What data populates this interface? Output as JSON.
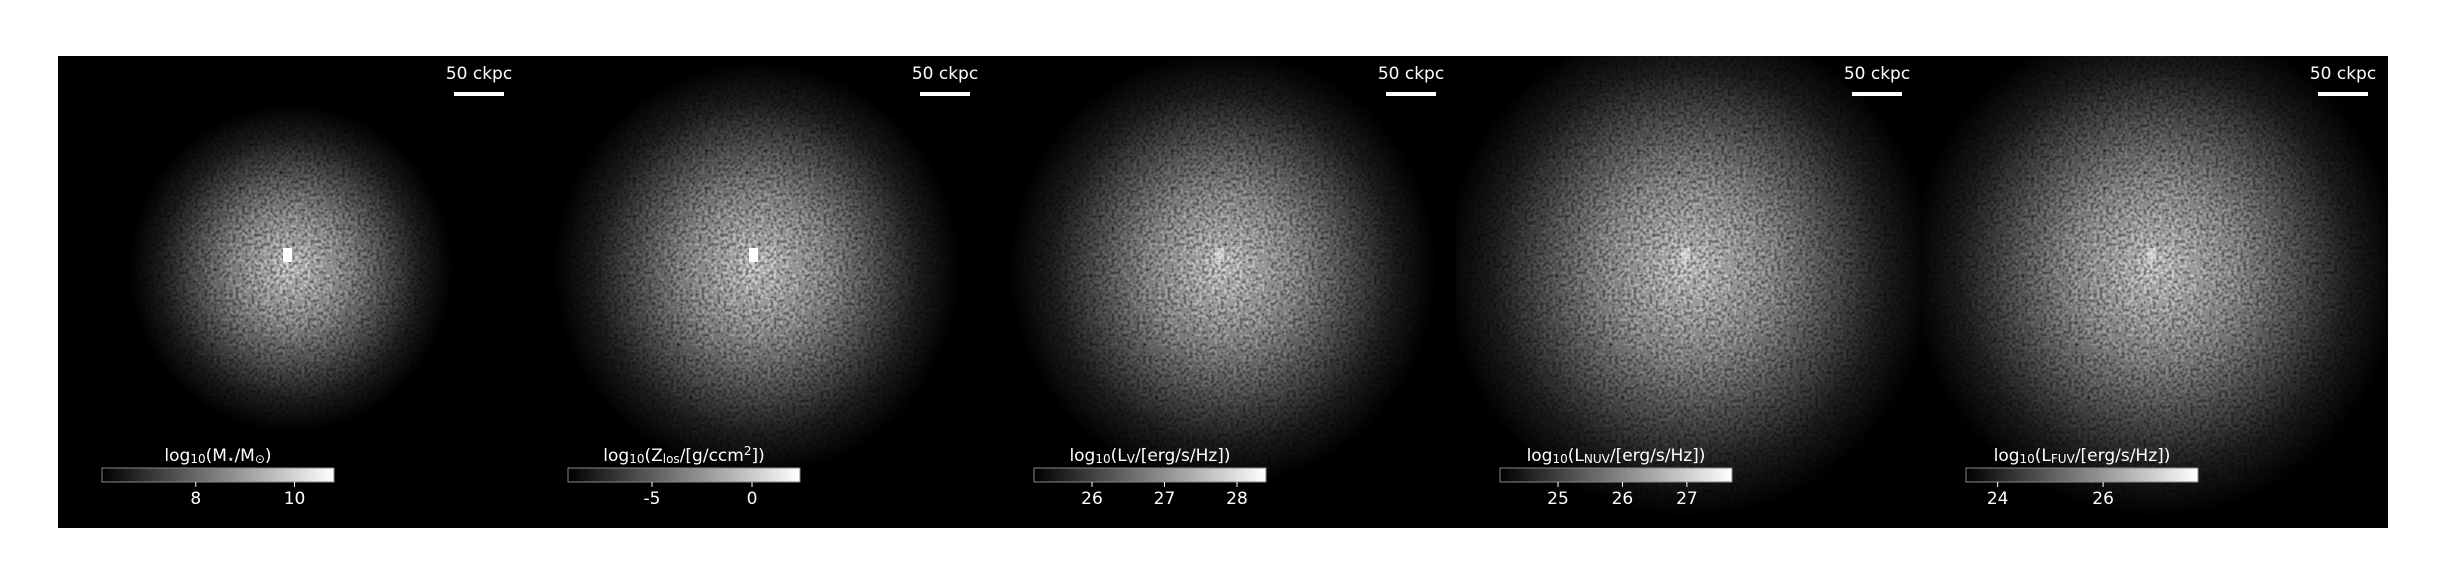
{
  "chart_data": {
    "type": "image_panels",
    "colormap": [
      "#000000",
      "#ffffff"
    ],
    "panels": [
      {
        "scalebar": "50 ckpc",
        "colorbar_label": [
          {
            "text": "log"
          },
          {
            "text": "10",
            "sub": true
          },
          {
            "text": "(M"
          },
          {
            "text": "⋆",
            "sub": true
          },
          {
            "text": "/M"
          },
          {
            "text": "⊙",
            "sub": true
          },
          {
            "text": ")"
          }
        ],
        "colorbar_lim": [
          6.1,
          10.8
        ],
        "colorbar_ticks": [
          8,
          10
        ]
      },
      {
        "scalebar": "50 ckpc",
        "colorbar_label": [
          {
            "text": "log"
          },
          {
            "text": "10",
            "sub": true
          },
          {
            "text": "(Z"
          },
          {
            "text": "los",
            "sub": true
          },
          {
            "text": "/[g/ccm"
          },
          {
            "text": "2",
            "sup": true
          },
          {
            "text": "])"
          }
        ],
        "colorbar_lim": [
          -9.2,
          2.4
        ],
        "colorbar_ticks": [
          -5,
          0
        ]
      },
      {
        "scalebar": "50 ckpc",
        "colorbar_label": [
          {
            "text": "log"
          },
          {
            "text": "10",
            "sub": true
          },
          {
            "text": "(L"
          },
          {
            "text": "V",
            "sub": true
          },
          {
            "text": "/[erg/s/Hz])"
          }
        ],
        "colorbar_lim": [
          25.2,
          28.4
        ],
        "colorbar_ticks": [
          26,
          27,
          28
        ]
      },
      {
        "scalebar": "50 ckpc",
        "colorbar_label": [
          {
            "text": "log"
          },
          {
            "text": "10",
            "sub": true
          },
          {
            "text": "(L"
          },
          {
            "text": "NUV",
            "sub": true
          },
          {
            "text": "/[erg/s/Hz])"
          }
        ],
        "colorbar_lim": [
          24.1,
          27.7
        ],
        "colorbar_ticks": [
          25,
          26,
          27
        ]
      },
      {
        "scalebar": "50 ckpc",
        "colorbar_label": [
          {
            "text": "log"
          },
          {
            "text": "10",
            "sub": true
          },
          {
            "text": "(L"
          },
          {
            "text": "FUV",
            "sub": true
          },
          {
            "text": "/[erg/s/Hz])"
          }
        ],
        "colorbar_lim": [
          23.4,
          27.8
        ],
        "colorbar_ticks": [
          24,
          26
        ]
      }
    ]
  }
}
